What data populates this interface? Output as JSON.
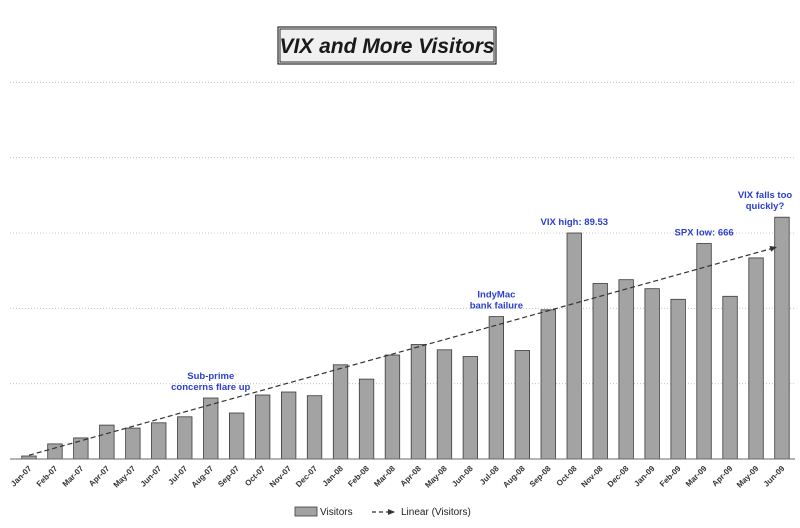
{
  "chart_data": {
    "type": "bar",
    "title": "VIX and More Visitors",
    "xlabel": "",
    "ylabel": "",
    "ylim": [
      0,
      60
    ],
    "grid": true,
    "categories": [
      "Jan-07",
      "Feb-07",
      "Mar-07",
      "Apr-07",
      "May-07",
      "Jun-07",
      "Jul-07",
      "Aug-07",
      "Sep-07",
      "Oct-07",
      "Nov-07",
      "Dec-07",
      "Jan-08",
      "Feb-08",
      "Mar-08",
      "Apr-08",
      "May-08",
      "Jun-08",
      "Jul-08",
      "Aug-08",
      "Sep-08",
      "Oct-08",
      "Nov-08",
      "Dec-08",
      "Jan-09",
      "Feb-09",
      "Mar-09",
      "Apr-09",
      "May-09",
      "Jun-09"
    ],
    "series": [
      {
        "name": "Visitors",
        "values": [
          0.4,
          2.0,
          2.8,
          4.5,
          4.1,
          4.8,
          5.6,
          8.1,
          6.1,
          8.5,
          8.9,
          8.4,
          12.5,
          10.6,
          13.8,
          15.2,
          14.5,
          13.6,
          18.9,
          14.4,
          19.8,
          30.0,
          23.3,
          23.8,
          22.6,
          21.2,
          28.6,
          21.6,
          26.7,
          32.1
        ]
      }
    ],
    "trendline": {
      "name": "Linear (Visitors)",
      "start": 0.5,
      "end": 28.1
    },
    "annotations": [
      {
        "text_lines": [
          "Sub-prime",
          "concerns flare up"
        ],
        "category": "Aug-07"
      },
      {
        "text_lines": [
          "IndyMac",
          "bank failure"
        ],
        "category": "Jul-08"
      },
      {
        "text_lines": [
          "VIX high:  89.53"
        ],
        "category": "Oct-08"
      },
      {
        "text_lines": [
          "SPX low:  666"
        ],
        "category": "Mar-09"
      },
      {
        "text_lines": [
          "VIX falls too",
          "quickly?"
        ],
        "category": "Jun-09"
      }
    ],
    "legend_position": "bottom",
    "colors": {
      "bar_fill": "#a3a3a3",
      "bar_stroke": "#3a3a3a",
      "annotation": "#2b3fcf",
      "gridline": "#bbbbbb",
      "trendline": "#333333"
    }
  }
}
